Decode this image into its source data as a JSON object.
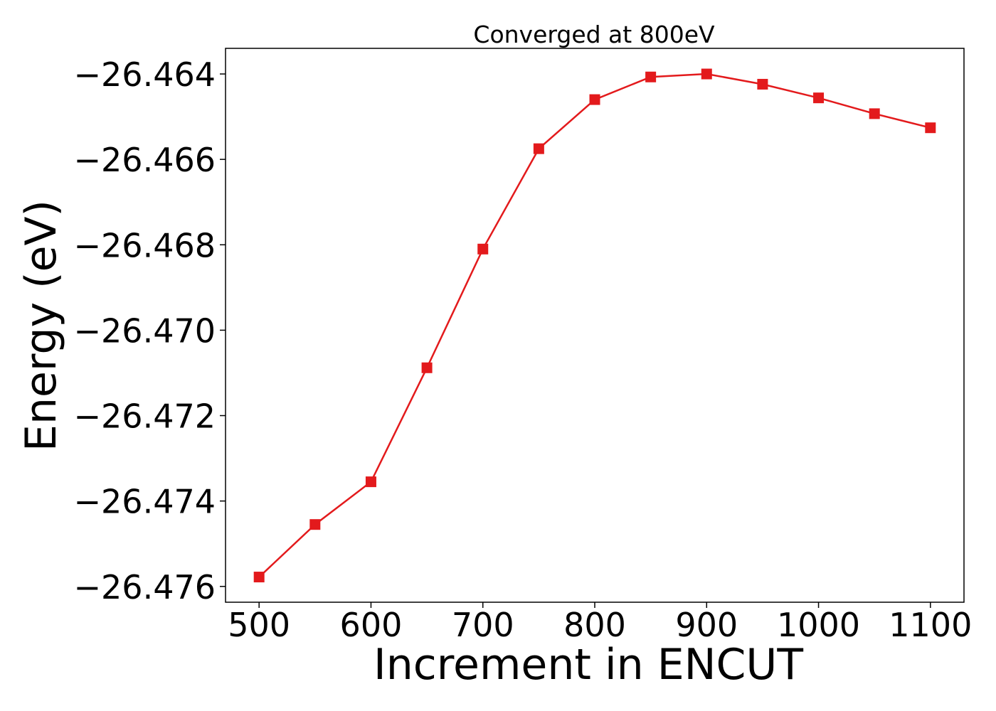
{
  "chart_data": {
    "type": "line",
    "title": "Converged at 800eV",
    "xlabel": "Increment in ENCUT",
    "ylabel": "Energy (eV)",
    "x": [
      500,
      550,
      600,
      650,
      700,
      750,
      800,
      850,
      900,
      950,
      1000,
      1050,
      1100
    ],
    "series": [
      {
        "values": [
          -26.47578,
          -26.47455,
          -26.47355,
          -26.47088,
          -26.4681,
          -26.46575,
          -26.4646,
          -26.46407,
          -26.464,
          -26.46424,
          -26.46456,
          -26.46493,
          -26.46526
        ],
        "color": "#e31a1c",
        "marker": "square"
      }
    ],
    "xlim": [
      470,
      1130
    ],
    "ylim": [
      -26.47637,
      -26.4634
    ],
    "xticks": [
      500,
      600,
      700,
      800,
      900,
      1000,
      1100
    ],
    "xtick_labels": [
      "500",
      "600",
      "700",
      "800",
      "900",
      "1000",
      "1100"
    ],
    "yticks": [
      -26.464,
      -26.466,
      -26.468,
      -26.47,
      -26.472,
      -26.474,
      -26.476
    ],
    "ytick_labels": [
      "−26.464",
      "−26.466",
      "−26.468",
      "−26.470",
      "−26.472",
      "−26.474",
      "−26.476"
    ],
    "grid": false,
    "legend": false
  }
}
